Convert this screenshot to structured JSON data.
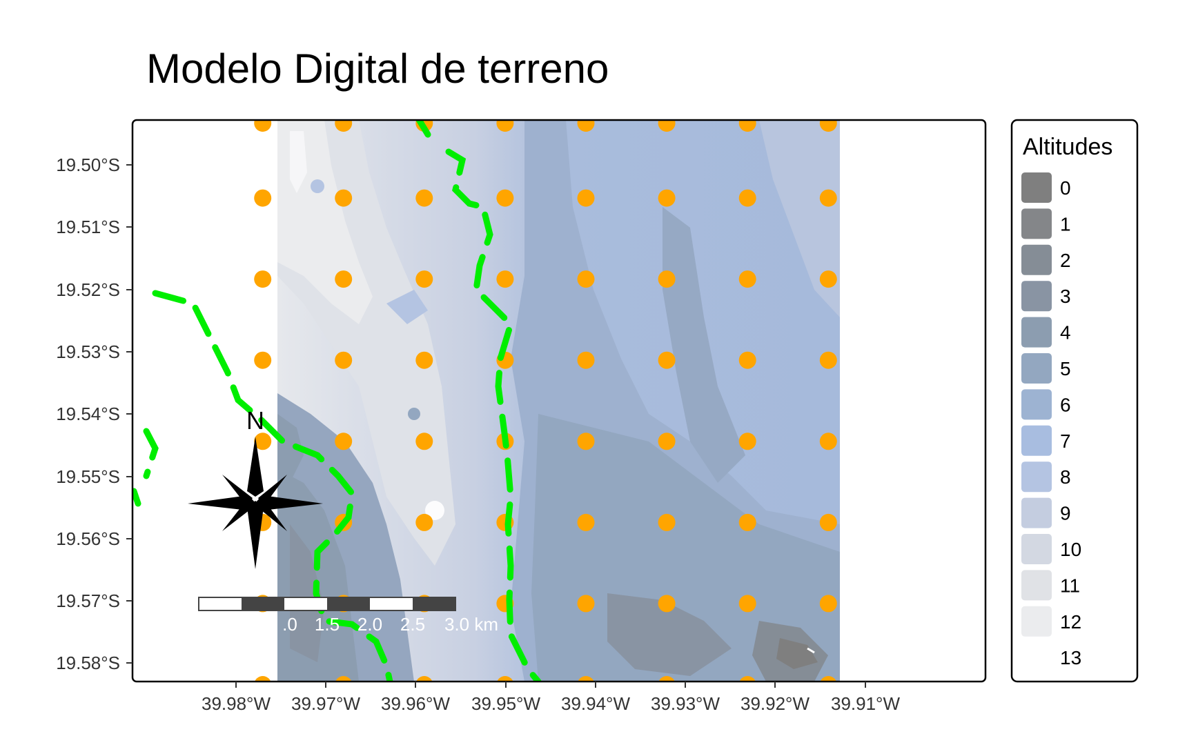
{
  "title": "Modelo Digital de terreno",
  "x_ticks": [
    "39.98°W",
    "39.97°W",
    "39.96°W",
    "39.95°W",
    "39.94°W",
    "39.93°W",
    "39.92°W",
    "39.91°W"
  ],
  "y_ticks": [
    "19.50°S",
    "19.51°S",
    "19.52°S",
    "19.53°S",
    "19.54°S",
    "19.55°S",
    "19.56°S",
    "19.57°S",
    "19.58°S"
  ],
  "legend": {
    "title": "Altitudes",
    "items": [
      {
        "label": "0",
        "color": "#7f7f7f"
      },
      {
        "label": "1",
        "color": "#848689"
      },
      {
        "label": "2",
        "color": "#858d96"
      },
      {
        "label": "3",
        "color": "#8994a3"
      },
      {
        "label": "4",
        "color": "#8c9db0"
      },
      {
        "label": "5",
        "color": "#93a7c0"
      },
      {
        "label": "6",
        "color": "#9db3d2"
      },
      {
        "label": "7",
        "color": "#a8bde0"
      },
      {
        "label": "8",
        "color": "#b4c4e2"
      },
      {
        "label": "9",
        "color": "#c4cde0"
      },
      {
        "label": "10",
        "color": "#d3d8e2"
      },
      {
        "label": "11",
        "color": "#e0e2e6"
      },
      {
        "label": "12",
        "color": "#ebecee"
      },
      {
        "label": "13",
        "color": "#ffffff"
      }
    ]
  },
  "north_arrow": {
    "label": "N"
  },
  "scale_bar": {
    "labels": [
      ".0",
      "1.5",
      "2.0",
      "2.5",
      "3.0 km"
    ]
  },
  "colors": {
    "points": "#ffa500",
    "boundary": "#00ee00",
    "panel_border": "#000000"
  },
  "chart_data": {
    "type": "map",
    "layers": [
      "altitude raster (contour fill)",
      "sample points",
      "dashed boundary"
    ],
    "xlim": [
      -39.99,
      -39.895
    ],
    "ylim": [
      -19.583,
      -19.493
    ],
    "points_x": [
      -39.9755,
      -39.9665,
      -39.9575,
      -39.9485,
      -39.9395,
      -39.9305,
      -39.9215,
      -39.9125
    ],
    "points_y": [
      -19.4935,
      -19.5055,
      -19.5185,
      -19.5315,
      -19.5445,
      -19.5575,
      -19.5705,
      -19.5835
    ]
  }
}
